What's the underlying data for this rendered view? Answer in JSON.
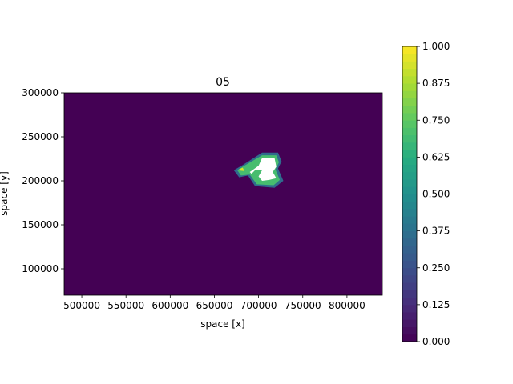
{
  "chart_data": {
    "type": "heatmap",
    "title": "05",
    "xlabel": "space [x]",
    "ylabel": "space [y]",
    "xlim": [
      480000,
      840000
    ],
    "ylim": [
      70000,
      300000
    ],
    "x_ticks": [
      500000,
      550000,
      600000,
      650000,
      700000,
      750000,
      800000
    ],
    "x_tick_labels": [
      "500000",
      "550000",
      "600000",
      "650000",
      "700000",
      "750000",
      "800000"
    ],
    "y_ticks": [
      100000,
      150000,
      200000,
      250000,
      300000
    ],
    "y_tick_labels": [
      "100000",
      "150000",
      "200000",
      "250000",
      "300000"
    ],
    "colorbar": {
      "range": [
        0,
        1
      ],
      "ticks": [
        0,
        0.125,
        0.25,
        0.375,
        0.5,
        0.625,
        0.75,
        0.875,
        1.0
      ],
      "tick_labels": [
        "0.000",
        "0.125",
        "0.250",
        "0.375",
        "0.500",
        "0.625",
        "0.750",
        "0.875",
        "1.000"
      ],
      "colormap": "viridis"
    },
    "background_value": 0.0,
    "patches": [
      {
        "value": 0.35,
        "points": [
          [
            672000,
            212000
          ],
          [
            682000,
            218000
          ],
          [
            704000,
            232000
          ],
          [
            722000,
            232000
          ],
          [
            726000,
            222000
          ],
          [
            722000,
            214000
          ],
          [
            728000,
            200000
          ],
          [
            718000,
            192000
          ],
          [
            696000,
            194000
          ],
          [
            688000,
            206000
          ],
          [
            678000,
            204000
          ]
        ]
      },
      {
        "value": 0.7,
        "points": [
          [
            676000,
            212000
          ],
          [
            682000,
            216000
          ],
          [
            704000,
            229000
          ],
          [
            720000,
            229000
          ],
          [
            723000,
            221000
          ],
          [
            719000,
            213000
          ],
          [
            724000,
            201000
          ],
          [
            717000,
            195000
          ],
          [
            698000,
            196000
          ],
          [
            690000,
            207000
          ],
          [
            680000,
            206000
          ]
        ]
      },
      {
        "value": 0.95,
        "points": [
          [
            676000,
            212000
          ],
          [
            682000,
            215000
          ],
          [
            684000,
            211000
          ]
        ]
      },
      {
        "value": 1.0,
        "points": [
          [
            704000,
            226000
          ],
          [
            718000,
            226000
          ],
          [
            720000,
            216000
          ],
          [
            716000,
            210000
          ],
          [
            720000,
            203000
          ],
          [
            712000,
            201000
          ],
          [
            704000,
            200000
          ],
          [
            700000,
            205000
          ],
          [
            704000,
            212000
          ],
          [
            696000,
            212000
          ],
          [
            692000,
            208000
          ],
          [
            690000,
            210000
          ],
          [
            700000,
            217000
          ]
        ]
      }
    ]
  }
}
